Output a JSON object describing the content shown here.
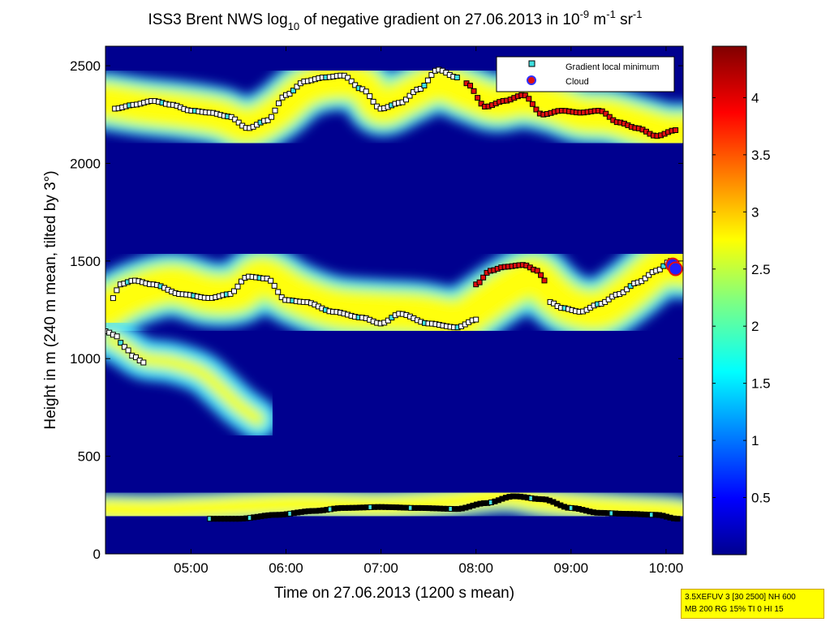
{
  "chart_data": {
    "type": "heatmap",
    "title": {
      "pre": "ISS3 Brent NWS log",
      "sub": "10",
      "mid": " of negative gradient on 27.06.2013 in 10",
      "sup1": "-9",
      "mid2": " m",
      "sup2": "-1",
      "mid3": " sr",
      "sup3": "-1"
    },
    "xlabel": "Time on 27.06.2013 (1200 s mean)",
    "ylabel": "Height in m (240 m mean, tilted by 3°)",
    "xlim_hours": [
      4.1,
      10.18
    ],
    "ylim": [
      0,
      2600
    ],
    "xticks": [
      {
        "value": 5,
        "label": "05:00"
      },
      {
        "value": 6,
        "label": "06:00"
      },
      {
        "value": 7,
        "label": "07:00"
      },
      {
        "value": 8,
        "label": "08:00"
      },
      {
        "value": 9,
        "label": "09:00"
      },
      {
        "value": 10,
        "label": "10:00"
      }
    ],
    "yticks": [
      0,
      500,
      1000,
      1500,
      2000,
      2500
    ],
    "colorbar": {
      "range": [
        0,
        4.45
      ],
      "ticks": [
        0.5,
        1,
        1.5,
        2,
        2.5,
        3,
        3.5,
        4
      ],
      "colormap": "jet"
    },
    "legend": {
      "position": "top-right",
      "entries": [
        {
          "label": "Gradient local minimum",
          "marker": "square",
          "color": "#3fe0e0"
        },
        {
          "label": "Cloud",
          "marker": "circle",
          "color": "#e01010"
        }
      ]
    },
    "colors": {
      "background": "#00008f",
      "layer_core": "#ffff10",
      "layer_edge": "#40e0ff",
      "marker_white": "#ffffff",
      "marker_red": "#e01010",
      "marker_cyan": "#3fe0e0",
      "cloud_blue": "#2020ff"
    },
    "layers": [
      {
        "name": "ground-layer",
        "width": 170,
        "core": 0.55,
        "x": [
          4.1,
          4.6,
          5.2,
          5.6,
          6.2,
          7.0,
          7.7,
          8.3,
          8.7,
          9.3,
          10.0,
          10.18
        ],
        "y": [
          230,
          225,
          235,
          245,
          255,
          245,
          265,
          295,
          265,
          240,
          220,
          210
        ]
      },
      {
        "name": "mid-layer",
        "width": 330,
        "core": 0.55,
        "x": [
          4.1,
          4.4,
          4.8,
          5.2,
          5.5,
          5.75,
          6.1,
          6.5,
          7.0,
          7.4,
          7.8,
          8.0,
          8.3,
          8.6,
          8.8,
          9.0,
          9.3,
          9.6,
          9.9,
          10.05,
          10.18
        ],
        "y": [
          1250,
          1330,
          1380,
          1330,
          1340,
          1420,
          1330,
          1260,
          1240,
          1230,
          1200,
          1250,
          1350,
          1420,
          1340,
          1270,
          1250,
          1340,
          1460,
          1480,
          1470
        ]
      },
      {
        "name": "left-plume",
        "width": 210,
        "core": 0.25,
        "x": [
          4.15,
          4.3,
          4.5,
          4.8,
          5.1,
          5.3,
          5.5,
          5.7
        ],
        "y": [
          1100,
          1060,
          1000,
          980,
          930,
          850,
          760,
          690
        ]
      },
      {
        "name": "upper-layer",
        "width": 300,
        "core": 0.55,
        "x": [
          4.1,
          4.5,
          4.9,
          5.3,
          5.6,
          5.9,
          6.2,
          6.5,
          6.8,
          7.0,
          7.3,
          7.6,
          7.9,
          8.2,
          8.5,
          8.8,
          9.1,
          9.4,
          9.7,
          10.0,
          10.18
        ],
        "y": [
          2320,
          2290,
          2270,
          2240,
          2190,
          2260,
          2380,
          2420,
          2400,
          2290,
          2350,
          2410,
          2360,
          2310,
          2330,
          2300,
          2250,
          2240,
          2200,
          2160,
          2160
        ]
      }
    ],
    "series": [
      {
        "name": "bottom-track",
        "marker": "black",
        "x": [
          5.2,
          5.5,
          5.9,
          6.3,
          6.6,
          7.0,
          7.4,
          7.8,
          8.1,
          8.4,
          8.7,
          9.0,
          9.3,
          9.6,
          9.9,
          10.12
        ],
        "y": [
          180,
          180,
          200,
          220,
          235,
          240,
          235,
          230,
          260,
          295,
          280,
          235,
          210,
          205,
          200,
          180
        ]
      },
      {
        "name": "left-diagonal",
        "marker": "white",
        "x": [
          4.1,
          4.2,
          4.3,
          4.4,
          4.5
        ],
        "y": [
          1140,
          1120,
          1060,
          1010,
          980
        ]
      },
      {
        "name": "mid-track-1",
        "marker": "white",
        "x": [
          4.18,
          4.25,
          4.4,
          4.6,
          4.9,
          5.2,
          5.4,
          5.6,
          5.8,
          6.0,
          6.2,
          6.5,
          6.8,
          7.0,
          7.2,
          7.5,
          7.8,
          8.0
        ],
        "y": [
          1310,
          1380,
          1400,
          1380,
          1330,
          1310,
          1330,
          1420,
          1410,
          1300,
          1290,
          1240,
          1210,
          1180,
          1230,
          1180,
          1160,
          1200
        ]
      },
      {
        "name": "mid-track-2",
        "marker": "white",
        "x": [
          8.78,
          8.9,
          9.1,
          9.3,
          9.5,
          9.7,
          9.9,
          10.05
        ],
        "y": [
          1290,
          1260,
          1240,
          1280,
          1330,
          1390,
          1450,
          1500
        ]
      },
      {
        "name": "mid-red",
        "marker": "red",
        "x": [
          8.0,
          8.15,
          8.3,
          8.5,
          8.65,
          8.72
        ],
        "y": [
          1380,
          1450,
          1470,
          1480,
          1450,
          1400
        ]
      },
      {
        "name": "upper-track",
        "marker": "white",
        "x": [
          4.2,
          4.4,
          4.6,
          4.8,
          5.0,
          5.2,
          5.4,
          5.6,
          5.8,
          6.0,
          6.2,
          6.4,
          6.6,
          6.8,
          7.0,
          7.2,
          7.4,
          7.6,
          7.8
        ],
        "y": [
          2280,
          2300,
          2320,
          2300,
          2270,
          2260,
          2240,
          2180,
          2220,
          2350,
          2420,
          2440,
          2450,
          2380,
          2280,
          2310,
          2380,
          2480,
          2440
        ]
      },
      {
        "name": "upper-red",
        "marker": "red",
        "x": [
          7.9,
          8.1,
          8.3,
          8.5,
          8.7,
          8.9,
          9.1,
          9.3,
          9.5,
          9.7,
          9.9,
          10.1
        ],
        "y": [
          2410,
          2290,
          2320,
          2350,
          2250,
          2270,
          2260,
          2270,
          2210,
          2180,
          2140,
          2170
        ]
      }
    ],
    "cloud_points": [
      {
        "x": 10.07,
        "y": 1480
      },
      {
        "x": 10.1,
        "y": 1460
      }
    ]
  },
  "info_box": {
    "line1": "3.5XEFUV 3 [30 2500] NH 600",
    "line2": "MB 200 RG 15% TI 0 HI 15"
  }
}
